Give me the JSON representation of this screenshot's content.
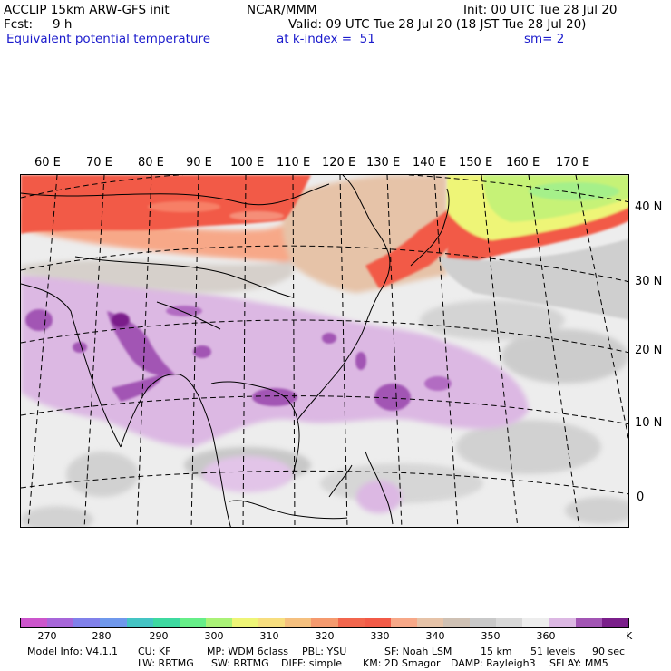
{
  "header": {
    "line1_left": "ACCLIP 15km ARW-GFS init",
    "line1_center": "NCAR/MMM",
    "line1_right": "Init: 00 UTC Tue 28 Jul 20",
    "fcst_label": "Fcst:",
    "fcst_value": "9 h",
    "valid": "Valid: 09 UTC Tue 28 Jul 20 (18 JST Tue 28 Jul 20)",
    "field": "Equivalent potential temperature",
    "level": "at k-index =  51",
    "smooth": "sm= 2"
  },
  "map": {
    "lon_labels": [
      "60 E",
      "70 E",
      "80 E",
      "90 E",
      "100 E",
      "110 E",
      "120 E",
      "130 E",
      "140 E",
      "150 E",
      "160 E",
      "170 E"
    ],
    "lat_labels": [
      "40 N",
      "30 N",
      "20 N",
      "10 N",
      "0"
    ],
    "colors": {
      "warm_red": "#f25a47",
      "salmon": "#f7a888",
      "tan": "#e6c3a8",
      "yellow": "#f4f57a",
      "lime": "#c6f277",
      "green": "#a5f08a",
      "gray_dark": "#b0b0b0",
      "gray_mid": "#cfcfcf",
      "gray_light": "#ededed",
      "lavender": "#dcb8e3",
      "purple": "#a255b4",
      "dark_purple": "#7a1f8a"
    }
  },
  "colorbar": {
    "colors": [
      "#cc55cc",
      "#a766d9",
      "#8080ea",
      "#6f98ec",
      "#44c4c4",
      "#3dd9a0",
      "#66ee88",
      "#aaf277",
      "#eef577",
      "#f7de7f",
      "#f5c07f",
      "#f59a6e",
      "#f2664d",
      "#f25a47",
      "#f7a888",
      "#e6c3a8",
      "#cfc1b4",
      "#c9c9c9",
      "#d8d8d8",
      "#ededed",
      "#dcb8e3",
      "#a255b4",
      "#7a1f8a"
    ],
    "ticks": [
      "270",
      "280",
      "290",
      "300",
      "310",
      "320",
      "330",
      "340",
      "350",
      "360"
    ],
    "unit": "K"
  },
  "footer": {
    "line1": [
      {
        "text": "Model Info: V4.1.1"
      },
      {
        "text": "CU: KF"
      },
      {
        "text": "MP: WDM 6class"
      },
      {
        "text": "PBL: YSU"
      },
      {
        "text": "SF: Noah LSM"
      },
      {
        "text": "15 km"
      },
      {
        "text": "51 levels"
      },
      {
        "text": "90 sec"
      }
    ],
    "line2": [
      {
        "text": "LW: RRTMG"
      },
      {
        "text": "SW: RRTMG"
      },
      {
        "text": "DIFF: simple"
      },
      {
        "text": "KM: 2D Smagor"
      },
      {
        "text": "DAMP: Rayleigh3"
      },
      {
        "text": "SFLAY: MM5"
      }
    ]
  }
}
